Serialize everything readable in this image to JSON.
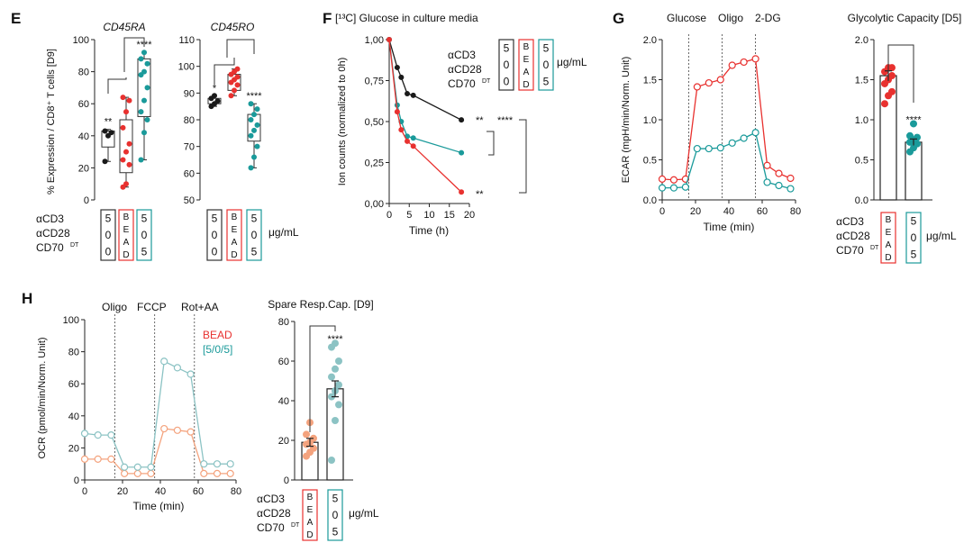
{
  "colors": {
    "black": "#1a1a1a",
    "red": "#e8312f",
    "teal": "#1a9a9a",
    "peach": "#f4a37e",
    "lightteal": "#8cc3c4"
  },
  "chart_data": [
    {
      "panel": "E",
      "type": "box",
      "title": "CD45RA",
      "ylabel": "% Expression / CD8⁺ T cells [D9]",
      "ylim": [
        0,
        100
      ],
      "yticks": [
        "0",
        "20",
        "40",
        "60",
        "80",
        "100"
      ],
      "groups": [
        {
          "name": "5/0/0",
          "color": "black",
          "box": [
            33,
            43
          ],
          "whisker": [
            24,
            44
          ],
          "points": [
            24,
            40,
            42,
            43
          ],
          "sig": "**"
        },
        {
          "name": "BEAD",
          "color": "red",
          "box": [
            17,
            50
          ],
          "whisker": [
            8,
            64
          ],
          "points": [
            8,
            10,
            22,
            25,
            30,
            35,
            45,
            55,
            62,
            64
          ],
          "sig": ""
        },
        {
          "name": "5/0/5",
          "color": "teal",
          "box": [
            52,
            88
          ],
          "whisker": [
            25,
            92
          ],
          "points": [
            25,
            42,
            50,
            55,
            62,
            70,
            78,
            80,
            85,
            88,
            92
          ],
          "sig": "****"
        }
      ],
      "brackets": [
        "5/0/0 vs BEAD",
        "BEAD vs 5/0/5"
      ]
    },
    {
      "panel": "E",
      "type": "box",
      "title": "CD45RO",
      "ylim": [
        50,
        110
      ],
      "yticks": [
        "50",
        "60",
        "70",
        "80",
        "90",
        "100",
        "110"
      ],
      "groups": [
        {
          "name": "5/0/0",
          "color": "black",
          "box": [
            86,
            88
          ],
          "whisker": [
            85,
            89
          ],
          "points": [
            85,
            86,
            87,
            88,
            89
          ],
          "sig": "*"
        },
        {
          "name": "BEAD",
          "color": "red",
          "box": [
            91,
            97
          ],
          "whisker": [
            89,
            99
          ],
          "points": [
            89,
            91,
            93,
            94,
            95,
            96,
            97,
            98,
            99
          ],
          "sig": ""
        },
        {
          "name": "5/0/5",
          "color": "teal",
          "box": [
            72,
            82
          ],
          "whisker": [
            62,
            86
          ],
          "points": [
            62,
            66,
            70,
            74,
            76,
            78,
            80,
            82,
            84,
            86
          ],
          "sig": "****"
        }
      ]
    },
    {
      "panel": "F",
      "type": "line",
      "title": "[¹³C] Glucose in culture media",
      "xlabel": "Time (h)",
      "ylabel": "Ion counts (normalized to 0h)",
      "xlim": [
        0,
        20
      ],
      "ylim": [
        0,
        1
      ],
      "xticks": [
        "0",
        "5",
        "10",
        "15",
        "20"
      ],
      "yticks": [
        "0,00",
        "0,25",
        "0,50",
        "0,75",
        "1,00"
      ],
      "series": [
        {
          "name": "5/0/0",
          "color": "black",
          "x": [
            0,
            2,
            3,
            4.5,
            6,
            18
          ],
          "y": [
            1.0,
            0.83,
            0.77,
            0.67,
            0.66,
            0.51
          ],
          "sig": "**"
        },
        {
          "name": "5/0/5",
          "color": "teal",
          "x": [
            0,
            2,
            3,
            4.5,
            6,
            18
          ],
          "y": [
            1.0,
            0.6,
            0.5,
            0.41,
            0.4,
            0.31
          ]
        },
        {
          "name": "BEAD",
          "color": "red",
          "x": [
            0,
            2,
            3,
            4.5,
            6,
            18
          ],
          "y": [
            1.0,
            0.56,
            0.45,
            0.38,
            0.35,
            0.07
          ],
          "sig": "**"
        }
      ],
      "bracket_sig": "****"
    },
    {
      "panel": "G",
      "type": "line",
      "xlabel": "Time (min)",
      "ylabel": "ECAR (mpH/min/Norm. Unit)",
      "xlim": [
        -2,
        80
      ],
      "ylim": [
        0,
        2.0
      ],
      "xticks": [
        "0",
        "20",
        "40",
        "60",
        "80"
      ],
      "yticks": [
        "0.0",
        "0.5",
        "1.0",
        "1.5",
        "2.0"
      ],
      "injections": [
        "Glucose",
        "Oligo",
        "2-DG"
      ],
      "series": [
        {
          "name": "BEAD",
          "color": "red",
          "x": [
            0,
            7,
            14,
            21,
            28,
            35,
            42,
            49,
            56,
            63,
            70,
            77
          ],
          "y": [
            0.26,
            0.25,
            0.26,
            1.41,
            1.46,
            1.5,
            1.68,
            1.72,
            1.76,
            0.43,
            0.33,
            0.27
          ]
        },
        {
          "name": "5/0/5",
          "color": "teal",
          "x": [
            0,
            7,
            14,
            21,
            28,
            35,
            42,
            49,
            56,
            63,
            70,
            77
          ],
          "y": [
            0.15,
            0.15,
            0.16,
            0.64,
            0.64,
            0.65,
            0.71,
            0.77,
            0.84,
            0.22,
            0.18,
            0.14
          ]
        }
      ]
    },
    {
      "panel": "G",
      "type": "bar",
      "title": "Glycolytic Capacity [D5]",
      "ylim": [
        0,
        2.0
      ],
      "yticks": [
        "0.0",
        "0.5",
        "1.0",
        "1.5",
        "2.0"
      ],
      "groups": [
        {
          "name": "BEAD",
          "color": "red",
          "value": 1.55,
          "err": 0.06,
          "points": [
            1.2,
            1.3,
            1.35,
            1.45,
            1.5,
            1.55,
            1.6,
            1.65,
            1.65
          ],
          "sig": ""
        },
        {
          "name": "5/0/5",
          "color": "teal",
          "value": 0.72,
          "err": 0.04,
          "points": [
            0.6,
            0.65,
            0.7,
            0.72,
            0.75,
            0.78,
            0.8,
            0.95
          ],
          "sig": "****"
        }
      ]
    },
    {
      "panel": "H",
      "type": "line",
      "xlabel": "Time (min)",
      "ylabel": "OCR (pmol/min/Norm. Unit)",
      "xlim": [
        0,
        80
      ],
      "ylim": [
        0,
        100
      ],
      "xticks": [
        "0",
        "20",
        "40",
        "60",
        "80"
      ],
      "yticks": [
        "0",
        "20",
        "40",
        "60",
        "80",
        "100"
      ],
      "injections": [
        "Oligo",
        "FCCP",
        "Rot+AA"
      ],
      "legend": [
        "BEAD",
        "[5/0/5]"
      ],
      "series": [
        {
          "name": "BEAD",
          "color": "peach",
          "x": [
            0,
            7,
            14,
            21,
            28,
            35,
            42,
            49,
            56,
            63,
            70,
            77
          ],
          "y": [
            13,
            13,
            13,
            4,
            4,
            4,
            32,
            31,
            30,
            4,
            4,
            4
          ]
        },
        {
          "name": "5/0/5",
          "color": "lightteal",
          "x": [
            0,
            7,
            14,
            21,
            28,
            35,
            42,
            49,
            56,
            63,
            70,
            77
          ],
          "y": [
            29,
            28,
            28,
            8,
            8,
            8,
            74,
            70,
            66,
            10,
            10,
            10
          ]
        }
      ]
    },
    {
      "panel": "H",
      "type": "bar",
      "title": "Spare Resp.Cap. [D9]",
      "ylim": [
        0,
        80
      ],
      "yticks": [
        "0",
        "20",
        "40",
        "60",
        "80"
      ],
      "groups": [
        {
          "name": "BEAD",
          "color": "peach",
          "value": 19,
          "err": 2,
          "points": [
            12,
            14,
            16,
            18,
            19,
            21,
            23,
            29
          ],
          "sig": ""
        },
        {
          "name": "5/0/5",
          "color": "lightteal",
          "value": 46,
          "err": 4,
          "points": [
            10,
            30,
            38,
            42,
            45,
            48,
            52,
            56,
            60,
            67,
            69
          ],
          "sig": "****"
        }
      ]
    }
  ],
  "labels": {
    "panel_e": "E",
    "panel_f": "F",
    "panel_g": "G",
    "panel_h": "H",
    "acd3": "αCD3",
    "acd28": "αCD28",
    "cd70": "CD70",
    "dt": "DT",
    "unit": "μg/mL",
    "g500": [
      "5",
      "0",
      "0"
    ],
    "bead": [
      "B",
      "E",
      "A",
      "D"
    ],
    "g505": [
      "5",
      "0",
      "5"
    ]
  }
}
